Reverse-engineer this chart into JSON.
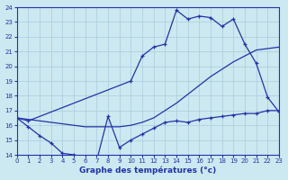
{
  "xlabel": "Graphe des températures (°c)",
  "bg_color": "#cce8f0",
  "grid_color": "#aaccdd",
  "line_color": "#2233aa",
  "ylim": [
    14,
    24
  ],
  "xlim": [
    0,
    23
  ],
  "yticks": [
    14,
    15,
    16,
    17,
    18,
    19,
    20,
    21,
    22,
    23,
    24
  ],
  "xticks": [
    0,
    1,
    2,
    3,
    4,
    5,
    6,
    7,
    8,
    9,
    10,
    11,
    12,
    13,
    14,
    15,
    16,
    17,
    18,
    19,
    20,
    21,
    22,
    23
  ],
  "line1_x": [
    0,
    1,
    2,
    3,
    4,
    5,
    6,
    7,
    8,
    9,
    10,
    11,
    12,
    13,
    14,
    15,
    16,
    17,
    18,
    19,
    20,
    21,
    22,
    23
  ],
  "line1_y": [
    16.5,
    15.9,
    15.3,
    14.8,
    14.1,
    14.0,
    13.8,
    13.6,
    16.6,
    14.5,
    15.0,
    15.4,
    15.8,
    16.2,
    16.3,
    16.2,
    16.4,
    16.5,
    16.6,
    16.7,
    16.8,
    16.8,
    17.0,
    17.0
  ],
  "line2_x": [
    0,
    1,
    2,
    3,
    4,
    5,
    6,
    7,
    8,
    9,
    10,
    11,
    12,
    13,
    14,
    15,
    16,
    17,
    18,
    19,
    20,
    21,
    22,
    23
  ],
  "line2_y": [
    16.5,
    16.4,
    16.3,
    16.2,
    16.1,
    16.0,
    15.9,
    15.9,
    15.9,
    15.9,
    16.0,
    16.2,
    16.5,
    17.0,
    17.5,
    18.1,
    18.7,
    19.3,
    19.8,
    20.3,
    20.7,
    21.1,
    21.2,
    21.3
  ],
  "line3_x": [
    0,
    1,
    10,
    11,
    12,
    13,
    14,
    15,
    16,
    17,
    18,
    19,
    20,
    21,
    22,
    23
  ],
  "line3_y": [
    16.5,
    16.3,
    19.0,
    20.7,
    21.3,
    21.5,
    23.8,
    23.2,
    23.4,
    23.3,
    22.7,
    23.2,
    21.5,
    20.2,
    17.9,
    16.9
  ]
}
